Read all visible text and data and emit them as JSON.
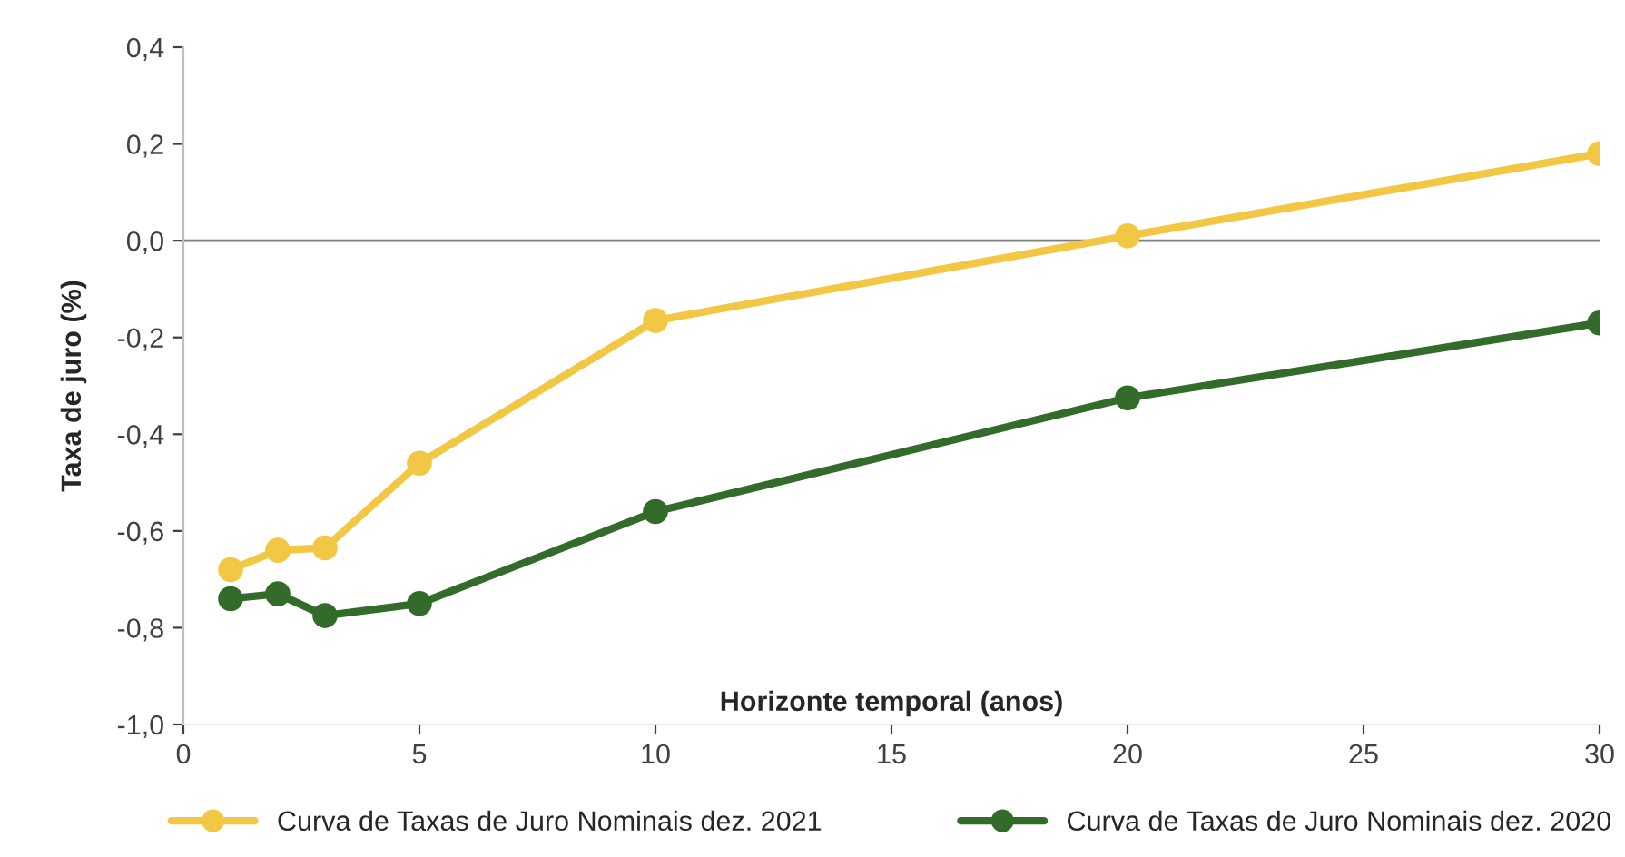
{
  "chart_data": {
    "type": "line",
    "xlabel": "Horizonte temporal (anos)",
    "ylabel": "Taxa de juro (%)",
    "series": [
      {
        "name": "Curva de Taxas de Juro Nominais dez. 2021",
        "color": "#f2c744",
        "x": [
          1,
          2,
          3,
          5,
          10,
          20,
          30
        ],
        "values": [
          -0.68,
          -0.64,
          -0.635,
          -0.46,
          -0.165,
          0.01,
          0.18
        ]
      },
      {
        "name": "Curva de Taxas de Juro Nominais dez. 2020",
        "color": "#336b2a",
        "x": [
          1,
          2,
          3,
          5,
          10,
          20,
          30
        ],
        "values": [
          -0.74,
          -0.73,
          -0.775,
          -0.75,
          -0.56,
          -0.325,
          -0.17
        ]
      }
    ],
    "xlim": [
      0,
      30
    ],
    "xticks": [
      0,
      5,
      10,
      15,
      20,
      25,
      30
    ],
    "ylim": [
      -1.0,
      0.4
    ],
    "yticks": [
      {
        "value": -1.0,
        "label": "-1,0"
      },
      {
        "value": -0.8,
        "label": "-0,8"
      },
      {
        "value": -0.6,
        "label": "-0,6"
      },
      {
        "value": -0.4,
        "label": "-0,4"
      },
      {
        "value": -0.2,
        "label": "-0,2"
      },
      {
        "value": 0.0,
        "label": "0,0"
      },
      {
        "value": 0.2,
        "label": "0,2"
      },
      {
        "value": 0.4,
        "label": "0,4"
      }
    ],
    "ref_lines": [
      {
        "axis": "y",
        "value": 0,
        "color": "#7f7f7f"
      }
    ],
    "marker": "circle",
    "line_style": "solid",
    "legend": "bottom",
    "grid": false
  }
}
